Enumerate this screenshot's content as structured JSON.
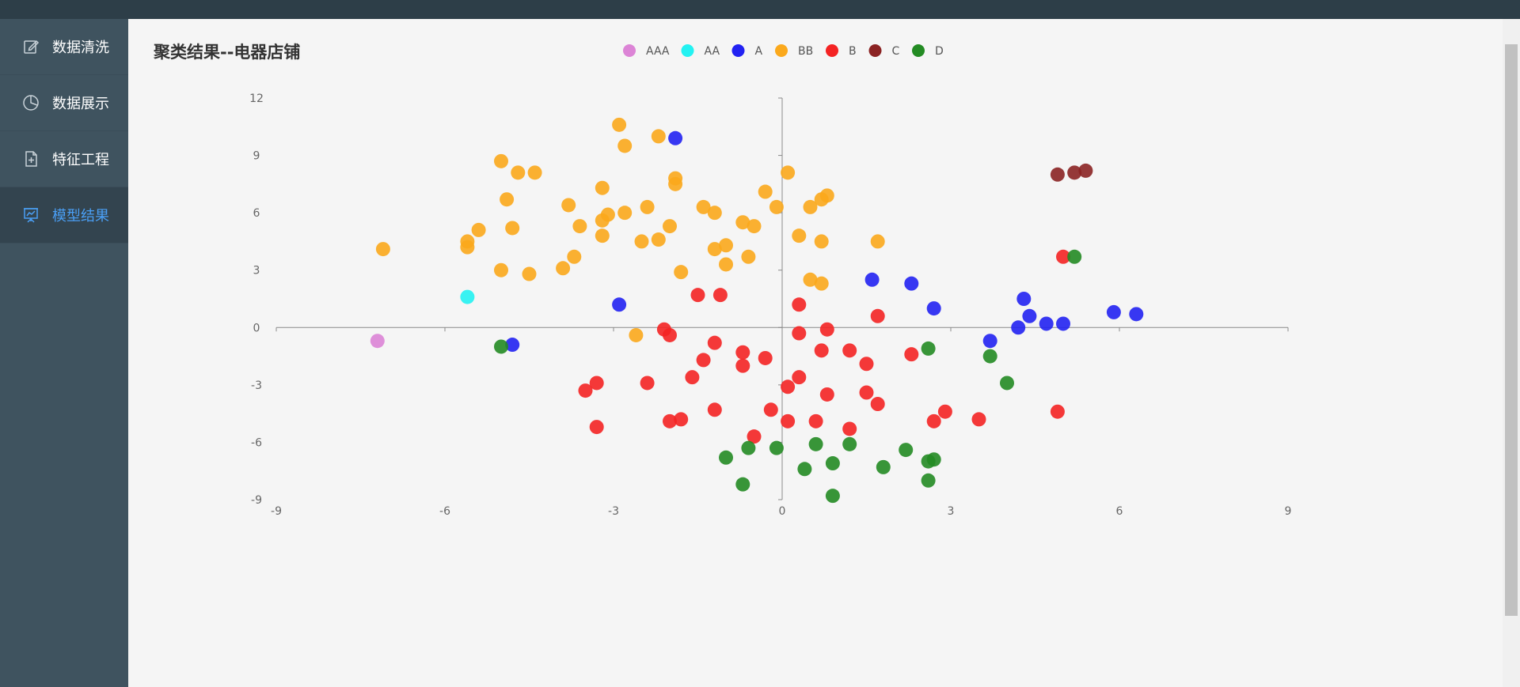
{
  "sidebar": {
    "items": [
      {
        "label": "数据清洗",
        "icon": "edit-icon",
        "active": false
      },
      {
        "label": "数据展示",
        "icon": "pie-chart-icon",
        "active": false
      },
      {
        "label": "特征工程",
        "icon": "document-add-icon",
        "active": false
      },
      {
        "label": "模型结果",
        "icon": "presentation-chart-icon",
        "active": true
      }
    ]
  },
  "colors": {
    "sidebar_bg": "#3f535f",
    "topbar_bg": "#2d3e48",
    "active_text": "#4a9ff5"
  },
  "chart_data": {
    "type": "scatter",
    "title": "聚类结果--电器店铺",
    "xlim": [
      -9,
      9
    ],
    "ylim": [
      -9,
      12
    ],
    "xticks": [
      -9,
      -6,
      -3,
      0,
      3,
      6,
      9
    ],
    "yticks": [
      -9,
      -6,
      -3,
      0,
      3,
      6,
      9,
      12
    ],
    "legend_position": "top-center",
    "grid": false,
    "series": [
      {
        "name": "AAA",
        "color": "#dc84d6",
        "points": [
          [
            -7.2,
            -0.7
          ]
        ]
      },
      {
        "name": "AA",
        "color": "#23f2f2",
        "points": [
          [
            -5.6,
            1.6
          ]
        ]
      },
      {
        "name": "A",
        "color": "#2222f2",
        "points": [
          [
            -1.9,
            9.9
          ],
          [
            -2.9,
            1.2
          ],
          [
            -4.8,
            -0.9
          ],
          [
            1.6,
            2.5
          ],
          [
            2.3,
            2.3
          ],
          [
            2.7,
            1.0
          ],
          [
            4.3,
            1.5
          ],
          [
            4.4,
            0.6
          ],
          [
            4.7,
            0.2
          ],
          [
            5.0,
            0.2
          ],
          [
            4.2,
            0.0
          ],
          [
            3.7,
            -0.7
          ],
          [
            5.9,
            0.8
          ],
          [
            6.3,
            0.7
          ]
        ]
      },
      {
        "name": "BB",
        "color": "#fba91c",
        "points": [
          [
            -7.1,
            4.1
          ],
          [
            -5.6,
            4.5
          ],
          [
            -5.6,
            4.2
          ],
          [
            -5.4,
            5.1
          ],
          [
            -5.0,
            8.7
          ],
          [
            -4.9,
            6.7
          ],
          [
            -5.0,
            3.0
          ],
          [
            -4.8,
            5.2
          ],
          [
            -4.7,
            8.1
          ],
          [
            -4.4,
            8.1
          ],
          [
            -4.5,
            2.8
          ],
          [
            -3.8,
            6.4
          ],
          [
            -3.6,
            5.3
          ],
          [
            -3.7,
            3.7
          ],
          [
            -3.9,
            3.1
          ],
          [
            -3.2,
            7.3
          ],
          [
            -3.1,
            5.9
          ],
          [
            -3.2,
            5.6
          ],
          [
            -3.2,
            4.8
          ],
          [
            -2.9,
            10.6
          ],
          [
            -2.8,
            9.5
          ],
          [
            -2.8,
            6.0
          ],
          [
            -2.5,
            4.5
          ],
          [
            -2.4,
            6.3
          ],
          [
            -2.2,
            10.0
          ],
          [
            -2.2,
            4.6
          ],
          [
            -2.0,
            5.3
          ],
          [
            -1.9,
            7.8
          ],
          [
            -1.9,
            7.5
          ],
          [
            -1.8,
            2.9
          ],
          [
            -1.4,
            6.3
          ],
          [
            -1.2,
            6.0
          ],
          [
            -1.2,
            4.1
          ],
          [
            -1.0,
            4.3
          ],
          [
            -1.0,
            3.3
          ],
          [
            -0.7,
            5.5
          ],
          [
            -0.5,
            5.3
          ],
          [
            -0.6,
            3.7
          ],
          [
            -0.3,
            7.1
          ],
          [
            -0.1,
            6.3
          ],
          [
            0.1,
            8.1
          ],
          [
            0.3,
            4.8
          ],
          [
            0.5,
            6.3
          ],
          [
            0.5,
            2.5
          ],
          [
            0.7,
            6.7
          ],
          [
            0.8,
            6.9
          ],
          [
            0.7,
            4.5
          ],
          [
            0.7,
            2.3
          ],
          [
            1.7,
            4.5
          ],
          [
            -2.6,
            -0.4
          ]
        ]
      },
      {
        "name": "B",
        "color": "#f42323",
        "points": [
          [
            -1.5,
            1.7
          ],
          [
            -1.1,
            1.7
          ],
          [
            0.3,
            1.2
          ],
          [
            1.7,
            0.6
          ],
          [
            -2.1,
            -0.1
          ],
          [
            -2.0,
            -0.4
          ],
          [
            0.3,
            -0.3
          ],
          [
            0.8,
            -0.1
          ],
          [
            -1.2,
            -0.8
          ],
          [
            -1.4,
            -1.7
          ],
          [
            -0.7,
            -1.3
          ],
          [
            -0.3,
            -1.6
          ],
          [
            0.7,
            -1.2
          ],
          [
            1.2,
            -1.2
          ],
          [
            1.5,
            -1.9
          ],
          [
            2.3,
            -1.4
          ],
          [
            -0.7,
            -2.0
          ],
          [
            -1.6,
            -2.6
          ],
          [
            0.3,
            -2.6
          ],
          [
            -3.3,
            -2.9
          ],
          [
            -3.5,
            -3.3
          ],
          [
            -2.4,
            -2.9
          ],
          [
            0.1,
            -3.1
          ],
          [
            0.8,
            -3.5
          ],
          [
            1.5,
            -3.4
          ],
          [
            1.7,
            -4.0
          ],
          [
            -1.2,
            -4.3
          ],
          [
            -0.2,
            -4.3
          ],
          [
            -2.0,
            -4.9
          ],
          [
            -1.8,
            -4.8
          ],
          [
            0.1,
            -4.9
          ],
          [
            0.6,
            -4.9
          ],
          [
            1.2,
            -5.3
          ],
          [
            -0.5,
            -5.7
          ],
          [
            -3.3,
            -5.2
          ],
          [
            2.7,
            -4.9
          ],
          [
            2.9,
            -4.4
          ],
          [
            3.5,
            -4.8
          ],
          [
            4.9,
            -4.4
          ],
          [
            5.0,
            3.7
          ]
        ]
      },
      {
        "name": "C",
        "color": "#8b2323",
        "points": [
          [
            4.9,
            8.0
          ],
          [
            5.2,
            8.1
          ],
          [
            5.4,
            8.2
          ]
        ]
      },
      {
        "name": "D",
        "color": "#238b23",
        "points": [
          [
            5.2,
            3.7
          ],
          [
            -5.0,
            -1.0
          ],
          [
            2.6,
            -1.1
          ],
          [
            3.7,
            -1.5
          ],
          [
            4.0,
            -2.9
          ],
          [
            -1.0,
            -6.8
          ],
          [
            -0.6,
            -6.3
          ],
          [
            -0.1,
            -6.3
          ],
          [
            0.6,
            -6.1
          ],
          [
            1.2,
            -6.1
          ],
          [
            2.2,
            -6.4
          ],
          [
            2.6,
            -7.0
          ],
          [
            2.7,
            -6.9
          ],
          [
            0.9,
            -7.1
          ],
          [
            0.4,
            -7.4
          ],
          [
            1.8,
            -7.3
          ],
          [
            -0.7,
            -8.2
          ],
          [
            2.6,
            -8.0
          ],
          [
            0.9,
            -8.8
          ]
        ]
      }
    ]
  }
}
